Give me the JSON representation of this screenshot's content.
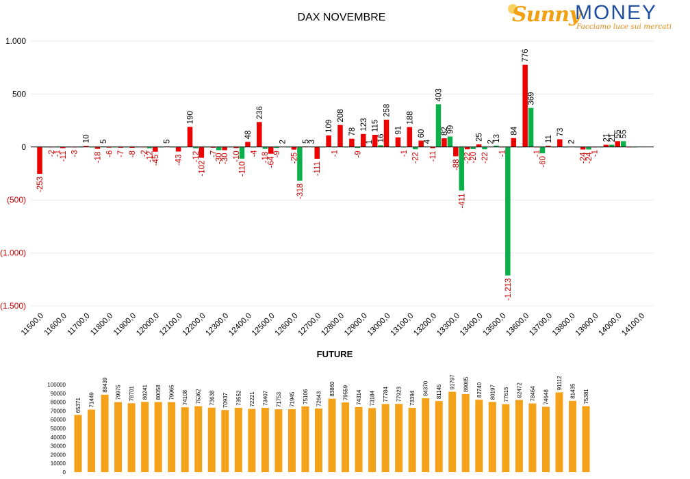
{
  "logo": {
    "brand_a": "Sunny",
    "brand_b": "MONEY",
    "tagline": "Facciamo luce sui mercati"
  },
  "colors": {
    "positive": "#0cb04a",
    "negative": "#ee0000",
    "future_bar": "#f4a21a",
    "neg_label": "#cc0000"
  },
  "chart_data": [
    {
      "type": "bar",
      "title": "DAX NOVEMBRE",
      "ylim": [
        -1500,
        1000
      ],
      "yticks": [
        1000,
        500,
        0,
        -500,
        -1000,
        -1500
      ],
      "ytick_labels": [
        "1.000",
        "500",
        "0",
        "(500)",
        "(1.000)",
        "(1.500)"
      ],
      "x_ticks": [
        "11500,0",
        "11600,0",
        "11700,0",
        "11800,0",
        "11900,0",
        "12000,0",
        "12100,0",
        "12200,0",
        "12300,0",
        "12400,0",
        "12500,0",
        "12600,0",
        "12700,0",
        "12800,0",
        "12900,0",
        "13000,0",
        "13100,0",
        "13200,0",
        "13300,0",
        "13400,0",
        "13500,0",
        "13600,0",
        "13700,0",
        "13800,0",
        "13900,0",
        "14000,0",
        "14100,0"
      ],
      "x_tick_values": [
        11500,
        11600,
        11700,
        11800,
        11900,
        12000,
        12100,
        12200,
        12300,
        12400,
        12500,
        12600,
        12700,
        12800,
        12900,
        13000,
        13100,
        13200,
        13300,
        13400,
        13500,
        13600,
        13700,
        13800,
        13900,
        14000,
        14100
      ],
      "series": [
        {
          "color": "red",
          "x": [
            11500,
            11550,
            11600,
            11650,
            11700,
            11750,
            11800,
            11850,
            11900,
            11950,
            12000,
            12050,
            12100,
            12150,
            12200,
            12250,
            12300,
            12350,
            12400,
            12450,
            12500,
            12550,
            12600,
            12650,
            12700,
            12750,
            12800,
            12850,
            12900,
            12950,
            13000,
            13050,
            13100,
            13150,
            13200,
            13250,
            13300,
            13350,
            13400,
            13450,
            13500,
            13550,
            13600,
            13650,
            13700,
            13750,
            13800,
            13850,
            13900,
            13950,
            14000,
            14050
          ],
          "values": [
            -253,
            -2,
            -11,
            -3,
            10,
            -18,
            -6,
            -7,
            -8,
            -2,
            -45,
            5,
            -43,
            190,
            -102,
            -7,
            -30,
            -10,
            48,
            236,
            -64,
            2,
            -25,
            5,
            -111,
            109,
            208,
            78,
            123,
            115,
            258,
            91,
            188,
            60,
            -11,
            82,
            -88,
            -22,
            25,
            2,
            -1,
            84,
            776,
            -1,
            11,
            73,
            2,
            -24,
            -1,
            21,
            55,
            0
          ],
          "labels": [
            "-253",
            "-2",
            "-11",
            "-3",
            "10",
            "-18",
            "-6",
            "-7",
            "-8",
            "-2",
            "-45",
            "5",
            "-43",
            "190",
            "-102",
            "-7",
            "-30",
            "-10",
            "48",
            "236",
            "-64",
            "2",
            "-25",
            "5",
            "-111",
            "109",
            "208",
            "78",
            "123",
            "115",
            "258",
            "91",
            "188",
            "60",
            "-11",
            "82",
            "-88",
            "-22",
            "25",
            "2",
            "-1",
            "84",
            "776",
            "-1",
            "11",
            "73",
            "2",
            "-24",
            "-1",
            "21",
            "55",
            ""
          ]
        },
        {
          "color": "green",
          "x": [
            11525,
            11575,
            11625,
            11675,
            11725,
            11775,
            11825,
            11875,
            11925,
            11975,
            12025,
            12075,
            12125,
            12175,
            12225,
            12275,
            12325,
            12375,
            12425,
            12475,
            12525,
            12575,
            12625,
            12675,
            12725,
            12775,
            12825,
            12875,
            12925,
            12975,
            13025,
            13075,
            13125,
            13175,
            13225,
            13275,
            13325,
            13375,
            13425,
            13475,
            13525,
            13575,
            13625,
            13675,
            13725,
            13775,
            13825,
            13875,
            13925,
            13975,
            14025,
            14075
          ],
          "values": [
            0,
            -1,
            0,
            0,
            0,
            5,
            0,
            0,
            0,
            -12,
            0,
            0,
            0,
            -12,
            0,
            -30,
            0,
            -110,
            -4,
            -18,
            -9,
            0,
            -318,
            3,
            0,
            -1,
            0,
            -9,
            1,
            16,
            0,
            -1,
            -22,
            4,
            403,
            99,
            -411,
            -20,
            -22,
            13,
            -1213,
            0,
            369,
            -60,
            0,
            0,
            0,
            -24,
            0,
            21,
            55,
            0
          ],
          "labels": [
            "",
            "-1",
            "",
            "",
            "",
            "5",
            "",
            "",
            "",
            "-12",
            "",
            "",
            "",
            "-12",
            "",
            "-30",
            "",
            "-110",
            "-4",
            "-18",
            "-9",
            "",
            "-318",
            "3",
            "",
            "-1",
            "",
            "-9",
            "1",
            "16",
            "",
            "-1",
            "-22",
            "4",
            "403",
            "99",
            "-411",
            "-20",
            "-22",
            "13",
            "-1.213",
            "",
            "369",
            "-60",
            "",
            "",
            "",
            "-24",
            "",
            "21",
            "55",
            ""
          ]
        }
      ]
    },
    {
      "type": "bar",
      "title": "FUTURE",
      "ylim": [
        0,
        100000
      ],
      "yticks": [
        0,
        10000,
        20000,
        30000,
        40000,
        50000,
        60000,
        70000,
        80000,
        90000,
        100000
      ],
      "values": [
        65371,
        71449,
        88439,
        79975,
        78701,
        80241,
        80058,
        79965,
        74108,
        75362,
        73638,
        70937,
        73552,
        72221,
        73407,
        71753,
        71945,
        75106,
        72643,
        83860,
        79559,
        74314,
        73184,
        77784,
        77923,
        73394,
        84370,
        81145,
        91797,
        89085,
        82740,
        80197,
        77615,
        82472,
        78464,
        74648,
        91112,
        81435,
        75381
      ]
    }
  ]
}
